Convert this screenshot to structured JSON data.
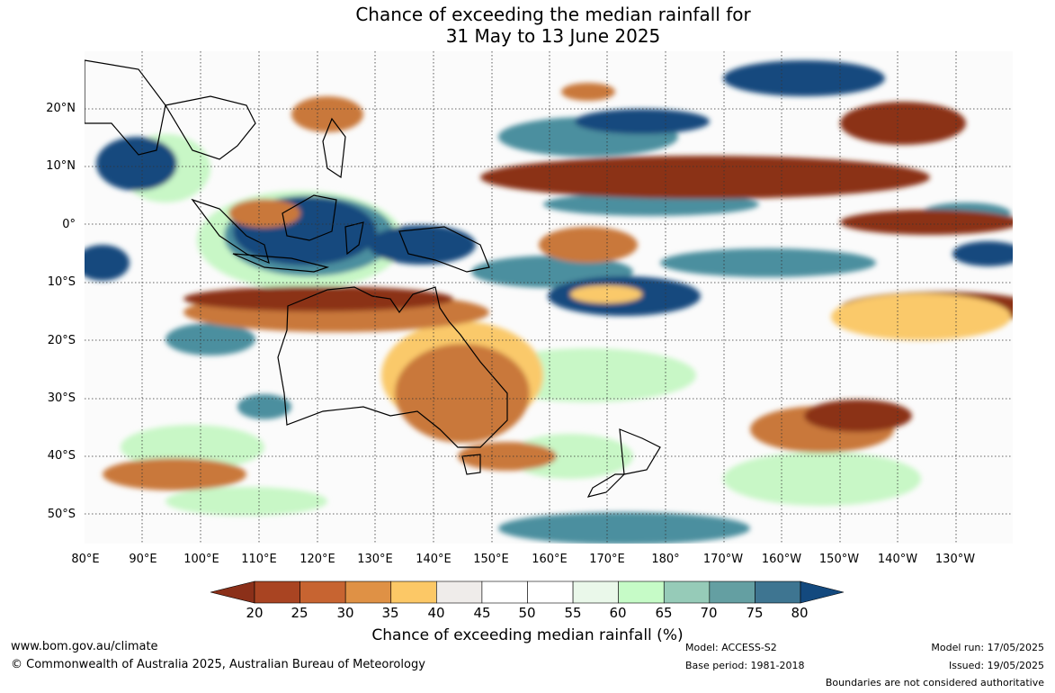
{
  "title": {
    "line1": "Chance of exceeding the median rainfall for",
    "line2": "31 May to 13 June 2025"
  },
  "map": {
    "lat_labels": [
      "20°N",
      "10°N",
      "0°",
      "10°S",
      "20°S",
      "30°S",
      "40°S",
      "50°S"
    ],
    "lon_labels": [
      "80°E",
      "90°E",
      "100°E",
      "110°E",
      "120°E",
      "130°E",
      "140°E",
      "150°E",
      "160°E",
      "170°E",
      "180°",
      "170°W",
      "160°W",
      "150°W",
      "140°W",
      "130°W"
    ],
    "colors": {
      "very_dry": "#8b3019",
      "dry": "#c9783b",
      "slightly_dry": "#fac96a",
      "neutral": "#f0eeea",
      "slightly_wet": "#c8f7c6",
      "wet": "#4c8f9f",
      "very_wet": "#13497e"
    }
  },
  "colorbar": {
    "ticks": [
      "20",
      "25",
      "30",
      "35",
      "40",
      "45",
      "50",
      "55",
      "60",
      "65",
      "70",
      "75",
      "80"
    ],
    "colors": [
      "#8b3019",
      "#a94422",
      "#c76431",
      "#df9145",
      "#fcc866",
      "#efecea",
      "#ffffff",
      "#ffffff",
      "#eaf8ea",
      "#c6fbc7",
      "#96cbb8",
      "#649fa2",
      "#3e7591",
      "#13497e"
    ],
    "label": "Chance of exceeding median rainfall (%)"
  },
  "footer": {
    "website": "www.bom.gov.au/climate",
    "copyright": "© Commonwealth of Australia 2025, Australian Bureau of Meteorology",
    "model": "Model: ACCESS-S2",
    "base_period": "Base period: 1981-2018",
    "model_run": "Model run: 17/05/2025",
    "issued": "Issued: 19/05/2025",
    "disclaimer": "Boundaries are not considered authoritative"
  }
}
